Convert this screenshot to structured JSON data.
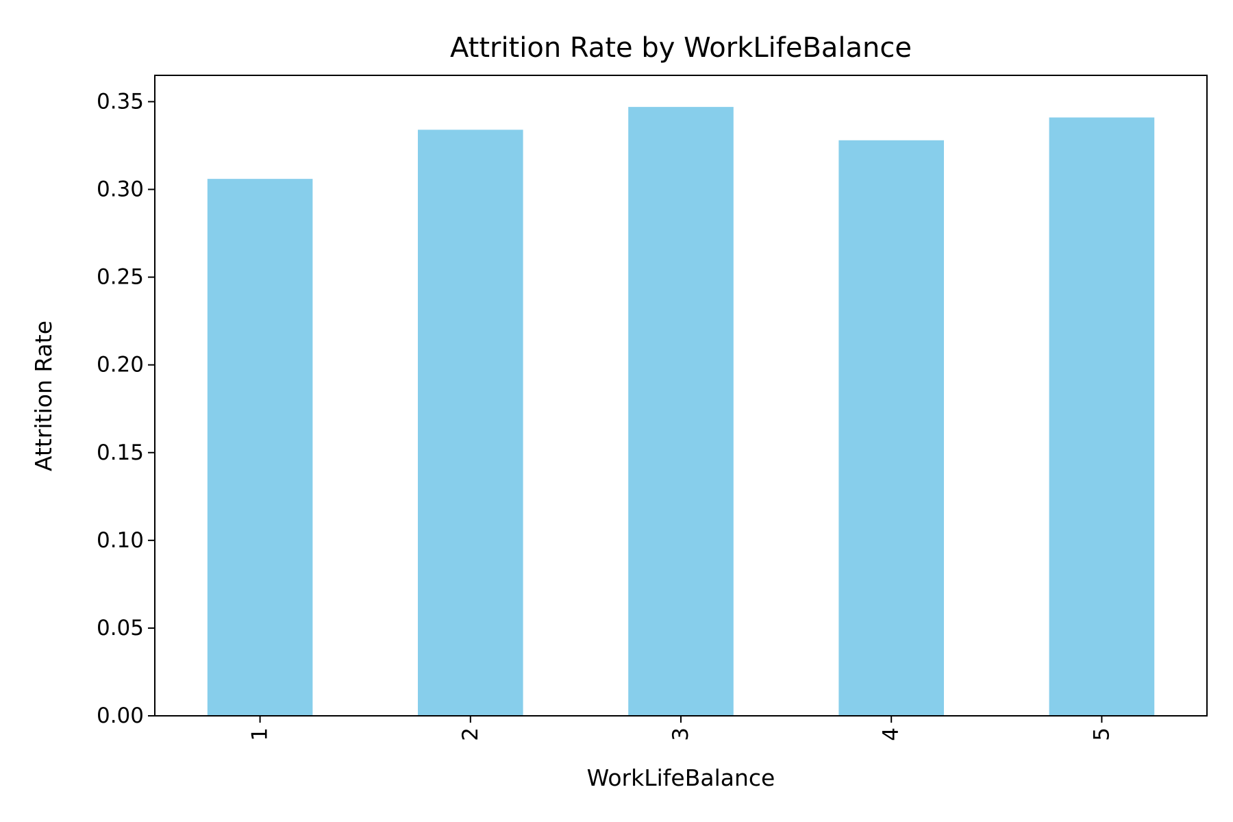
{
  "chart_data": {
    "type": "bar",
    "title": "Attrition Rate by WorkLifeBalance",
    "xlabel": "WorkLifeBalance",
    "ylabel": "Attrition Rate",
    "categories": [
      "1",
      "2",
      "3",
      "4",
      "5"
    ],
    "values": [
      0.306,
      0.334,
      0.347,
      0.328,
      0.341
    ],
    "ylim": [
      0,
      0.365
    ],
    "yticks": [
      "0.00",
      "0.05",
      "0.10",
      "0.15",
      "0.20",
      "0.25",
      "0.30",
      "0.35"
    ],
    "bar_color": "#87CEEB",
    "grid": false,
    "legend": "none",
    "x_tick_rotation": 90
  }
}
